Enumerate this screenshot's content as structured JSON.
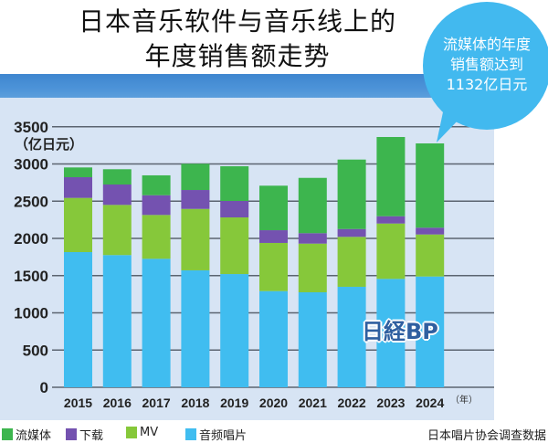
{
  "title": {
    "line1": "日本音乐软件与音乐线上的",
    "line2": "年度销售额走势"
  },
  "callout": {
    "line1": "流媒体的年度",
    "line2": "销售额达到",
    "line3": "1132亿日元"
  },
  "logo": "日経BP",
  "source": "日本唱片协会调查数据",
  "colors": {
    "streaming": "#3db54e",
    "download": "#7452b0",
    "mv": "#86c83a",
    "audio": "#40bdf0",
    "callout": "#42b9ef",
    "band": "#4a8fd6",
    "panel": "#d7e4f4"
  },
  "chart_data": {
    "type": "bar",
    "stacked": true,
    "title": "日本音乐软件与音乐线上的年度销售额走势",
    "ylabel": "（亿日元）",
    "xlabel": "（年）",
    "ylim": [
      0,
      3500
    ],
    "yticks": [
      0,
      500,
      1000,
      1500,
      2000,
      2500,
      3000,
      3500
    ],
    "grid": true,
    "legend_position": "bottom",
    "categories": [
      "2015",
      "2016",
      "2017",
      "2018",
      "2019",
      "2020",
      "2021",
      "2022",
      "2023",
      "2024"
    ],
    "series": [
      {
        "name": "音频唱片",
        "key": "audio",
        "values": [
          1816,
          1776,
          1726,
          1571,
          1521,
          1292,
          1276,
          1350,
          1456,
          1488
        ]
      },
      {
        "name": "MV",
        "key": "mv",
        "values": [
          728,
          674,
          589,
          825,
          761,
          647,
          654,
          671,
          744,
          565
        ]
      },
      {
        "name": "下载",
        "key": "download",
        "values": [
          278,
          274,
          265,
          254,
          221,
          171,
          140,
          105,
          98,
          91
        ]
      },
      {
        "name": "流媒体",
        "key": "streaming",
        "values": [
          131,
          205,
          267,
          352,
          466,
          598,
          743,
          933,
          1064,
          1132
        ]
      }
    ],
    "legend_order": [
      "streaming",
      "download",
      "mv",
      "audio"
    ]
  }
}
